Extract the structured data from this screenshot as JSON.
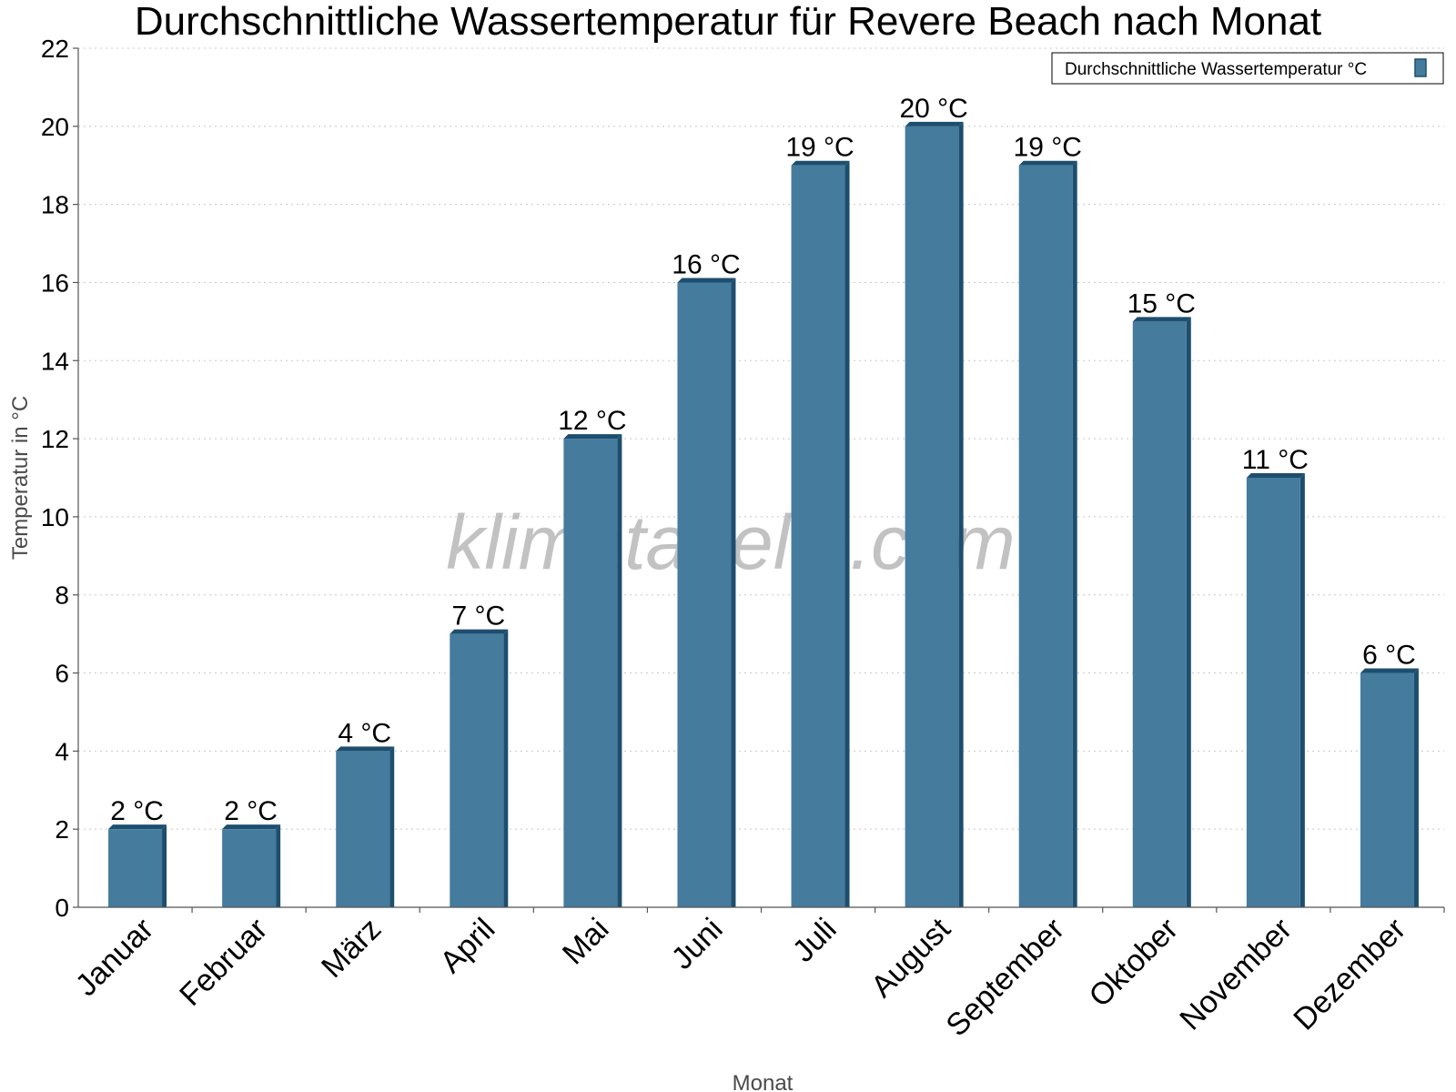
{
  "chart_data": {
    "type": "bar",
    "title": "Durchschnittliche Wassertemperatur für Revere Beach nach Monat",
    "xlabel": "Monat",
    "ylabel": "Temperatur in °C",
    "ylim": [
      0,
      22
    ],
    "yticks": [
      0,
      2,
      4,
      6,
      8,
      10,
      12,
      14,
      16,
      18,
      20,
      22
    ],
    "grid": true,
    "legend_position": "top-right",
    "categories": [
      "Januar",
      "Februar",
      "März",
      "April",
      "Mai",
      "Juni",
      "Juli",
      "August",
      "September",
      "Oktober",
      "November",
      "Dezember"
    ],
    "series": [
      {
        "name": "Durchschnittliche Wassertemperatur °C",
        "values": [
          2,
          2,
          4,
          7,
          12,
          16,
          19,
          20,
          19,
          15,
          11,
          6
        ],
        "color": "#457b9d",
        "side_color": "#1d4e6e"
      }
    ],
    "data_labels": [
      "2 °C",
      "2 °C",
      "4 °C",
      "7 °C",
      "12 °C",
      "16 °C",
      "19 °C",
      "20 °C",
      "19 °C",
      "15 °C",
      "11 °C",
      "6 °C"
    ],
    "watermark": "klimatabelle.com"
  }
}
